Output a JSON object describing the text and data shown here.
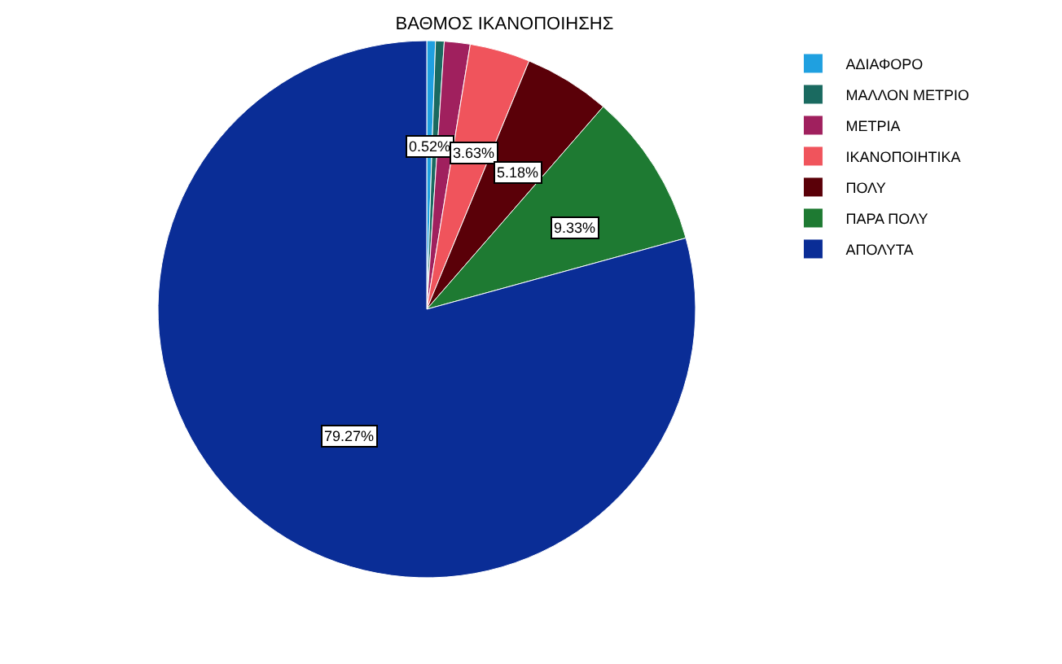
{
  "chart_data": {
    "type": "pie",
    "title": "ΒΑΘΜΟΣ ΙΚΑΝΟΠΟΙΗΣΗΣ",
    "categories": [
      "ΑΔΙΑΦΟΡΟ",
      "ΜΑΛΛΟΝ ΜΕΤΡΙΟ",
      "ΜΕΤΡΙΑ",
      "ΙΚΑΝΟΠΟΙΗΤΙΚΑ",
      "ΠΟΛΥ",
      "ΠΑΡΑ ΠΟΛΥ",
      "ΑΠΟΛΥΤΑ"
    ],
    "values": [
      0.52,
      0.52,
      1.55,
      3.63,
      5.18,
      9.33,
      79.27
    ],
    "value_labels": [
      "0.52%",
      null,
      null,
      "3.63%",
      "5.18%",
      "9.33%",
      "79.27%"
    ],
    "colors": [
      "#1fa0e0",
      "#1a6a60",
      "#a0205e",
      "#f0545c",
      "#5a0008",
      "#1e7a32",
      "#0a2d96"
    ],
    "legend": "top right"
  }
}
